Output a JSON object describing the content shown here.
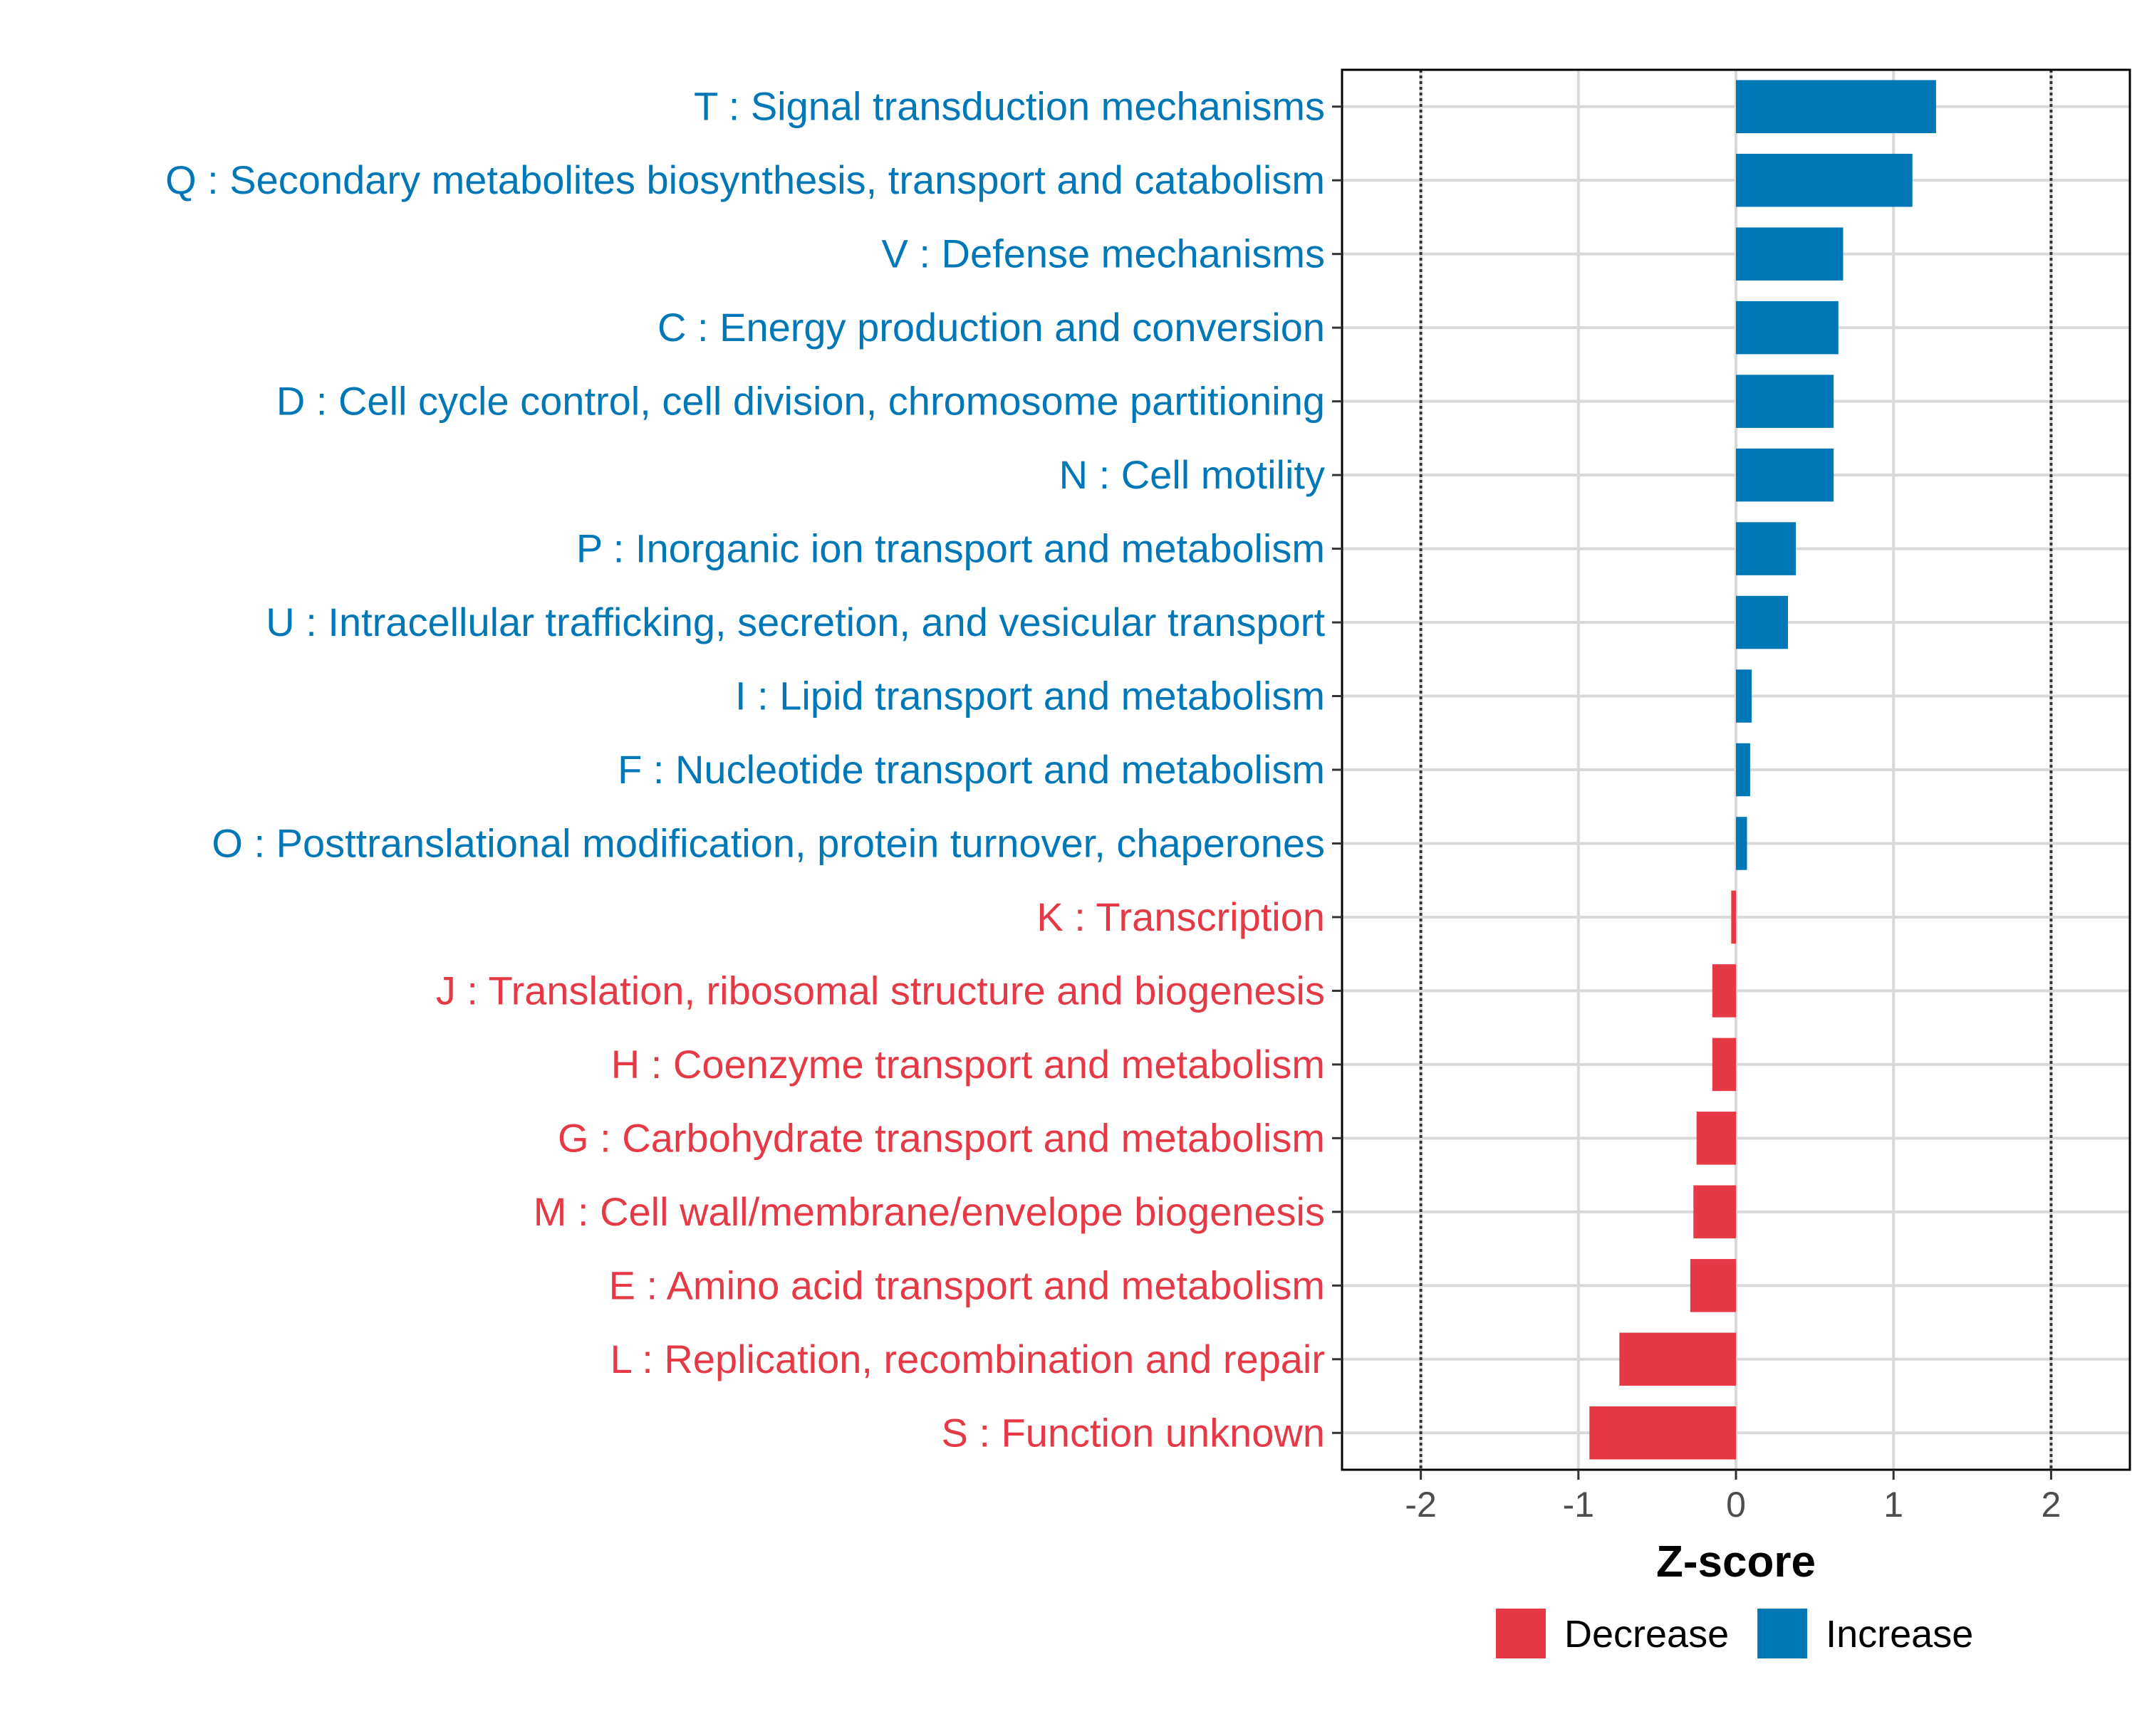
{
  "chart_data": {
    "type": "bar",
    "orientation": "horizontal",
    "title": "",
    "xlabel": "Z-score",
    "ylabel": "",
    "xlim": [
      -2.5,
      2.5
    ],
    "xticks": [
      -2,
      -1,
      0,
      1,
      2
    ],
    "xtick_labels": [
      "-2",
      "-1",
      "0",
      "1",
      "2"
    ],
    "reference_lines": [
      -2,
      2
    ],
    "grid": true,
    "categories": [
      "T : Signal transduction mechanisms",
      "Q : Secondary metabolites biosynthesis, transport and catabolism",
      "V : Defense mechanisms",
      "C : Energy production and conversion",
      "D : Cell cycle control, cell division, chromosome partitioning",
      "N : Cell motility",
      "P : Inorganic ion transport and metabolism",
      "U : Intracellular trafficking, secretion, and vesicular transport",
      "I : Lipid transport and metabolism",
      "F : Nucleotide transport and metabolism",
      "O : Posttranslational modification, protein turnover, chaperones",
      "K : Transcription",
      "J : Translation, ribosomal structure and biogenesis",
      "H : Coenzyme transport and metabolism",
      "G : Carbohydrate transport and metabolism",
      "M : Cell wall/membrane/envelope biogenesis",
      "E : Amino acid transport and metabolism",
      "L : Replication, recombination and repair",
      "S : Function unknown"
    ],
    "values": [
      1.27,
      1.12,
      0.68,
      0.65,
      0.62,
      0.62,
      0.38,
      0.33,
      0.1,
      0.09,
      0.07,
      -0.03,
      -0.15,
      -0.15,
      -0.25,
      -0.27,
      -0.29,
      -0.74,
      -0.93
    ],
    "groups": [
      "Increase",
      "Increase",
      "Increase",
      "Increase",
      "Increase",
      "Increase",
      "Increase",
      "Increase",
      "Increase",
      "Increase",
      "Increase",
      "Decrease",
      "Decrease",
      "Decrease",
      "Decrease",
      "Decrease",
      "Decrease",
      "Decrease",
      "Decrease"
    ],
    "legend": {
      "position": "bottom",
      "entries": [
        {
          "label": "Decrease",
          "color": "#E63946"
        },
        {
          "label": "Increase",
          "color": "#0077B6"
        }
      ]
    },
    "colors": {
      "Decrease": "#E63946",
      "Increase": "#0077B6"
    }
  }
}
